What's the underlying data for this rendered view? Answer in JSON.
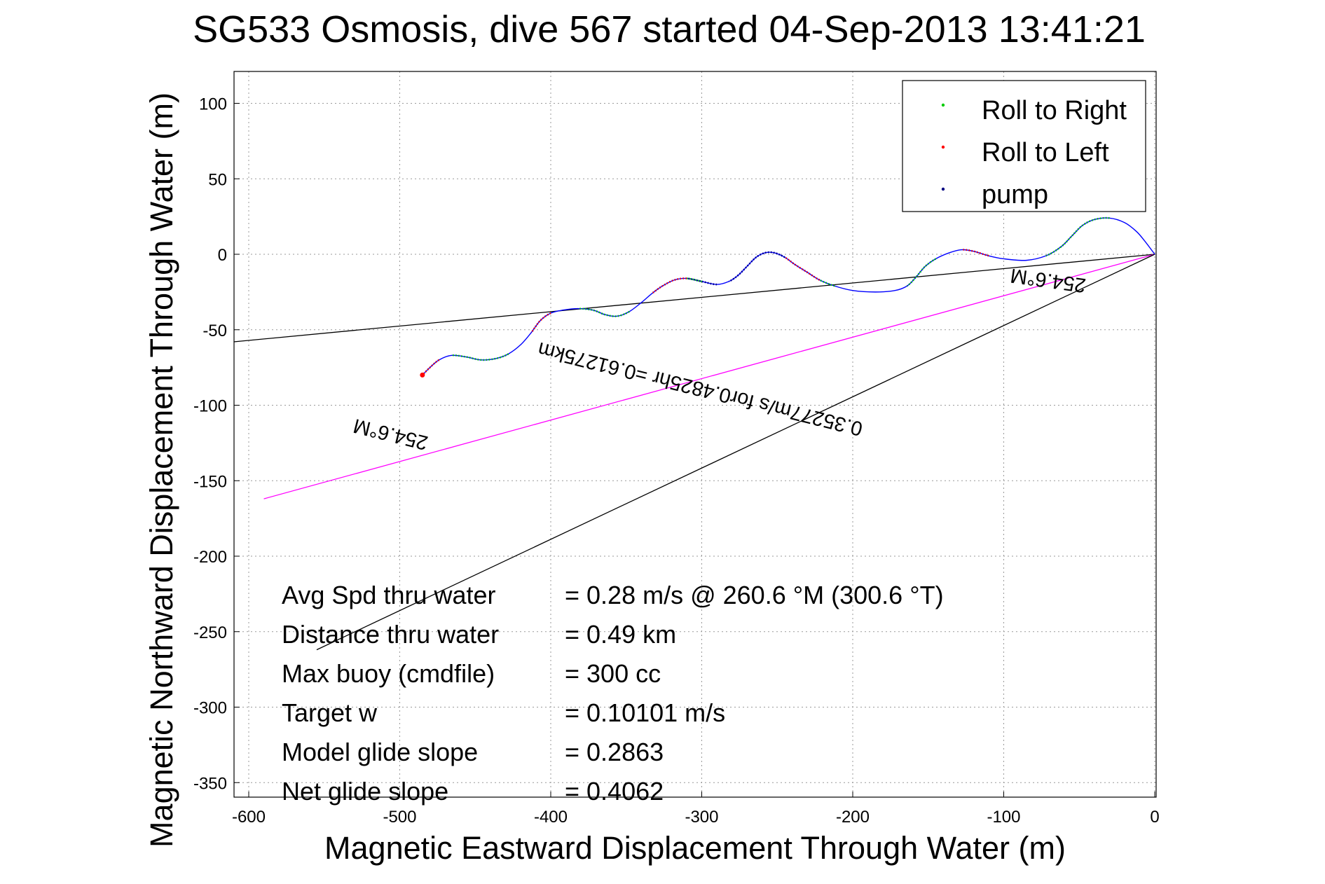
{
  "chart_data": {
    "type": "line",
    "title": "SG533 Osmosis, dive 567 started 04-Sep-2013 13:41:21",
    "xlabel": "Magnetic Eastward Displacement Through Water (m)",
    "ylabel": "Magnetic Northward Displacement Through Water (m)",
    "xlim": [
      -610,
      0
    ],
    "ylim": [
      -360,
      120
    ],
    "xticks": [
      -600,
      -500,
      -400,
      -300,
      -200,
      -100,
      0
    ],
    "yticks": [
      100,
      50,
      0,
      -50,
      -100,
      -150,
      -200,
      -250,
      -300,
      -350
    ],
    "grid": true,
    "legend": {
      "placement": "top-right",
      "entries": [
        {
          "label": "Roll to Right",
          "color": "#00cc00"
        },
        {
          "label": "Roll to Left",
          "color": "#ff0000"
        },
        {
          "label": "pump",
          "color": "#000080"
        }
      ]
    },
    "track": {
      "color": "#0000ff",
      "points": [
        [
          0,
          0
        ],
        [
          -6,
          8
        ],
        [
          -12,
          15
        ],
        [
          -20,
          21
        ],
        [
          -30,
          24
        ],
        [
          -40,
          23
        ],
        [
          -48,
          19
        ],
        [
          -55,
          12
        ],
        [
          -62,
          5
        ],
        [
          -72,
          -1
        ],
        [
          -85,
          -4
        ],
        [
          -100,
          -3
        ],
        [
          -110,
          -1
        ],
        [
          -120,
          2
        ],
        [
          -128,
          3
        ],
        [
          -136,
          1
        ],
        [
          -145,
          -3
        ],
        [
          -152,
          -8
        ],
        [
          -158,
          -15
        ],
        [
          -164,
          -21
        ],
        [
          -172,
          -24
        ],
        [
          -185,
          -25
        ],
        [
          -200,
          -24
        ],
        [
          -212,
          -21
        ],
        [
          -222,
          -17
        ],
        [
          -230,
          -12
        ],
        [
          -238,
          -7
        ],
        [
          -245,
          -2
        ],
        [
          -252,
          1
        ],
        [
          -258,
          1
        ],
        [
          -264,
          -2
        ],
        [
          -270,
          -8
        ],
        [
          -276,
          -14
        ],
        [
          -282,
          -18
        ],
        [
          -290,
          -20
        ],
        [
          -300,
          -18
        ],
        [
          -310,
          -16
        ],
        [
          -318,
          -17
        ],
        [
          -326,
          -21
        ],
        [
          -333,
          -26
        ],
        [
          -340,
          -32
        ],
        [
          -348,
          -38
        ],
        [
          -356,
          -41
        ],
        [
          -364,
          -40
        ],
        [
          -372,
          -37
        ],
        [
          -382,
          -36
        ],
        [
          -392,
          -37
        ],
        [
          -400,
          -39
        ],
        [
          -407,
          -44
        ],
        [
          -413,
          -52
        ],
        [
          -420,
          -60
        ],
        [
          -428,
          -66
        ],
        [
          -436,
          -69
        ],
        [
          -446,
          -70
        ],
        [
          -456,
          -68
        ],
        [
          -466,
          -67
        ],
        [
          -474,
          -70
        ],
        [
          -480,
          -75
        ],
        [
          -485,
          -80
        ]
      ],
      "roll_right_ranges": [
        [
          4,
          9
        ],
        [
          16,
          19
        ],
        [
          23,
          24
        ],
        [
          35,
          36
        ],
        [
          41,
          45
        ],
        [
          51,
          55
        ]
      ],
      "roll_left_ranges": [
        [
          12,
          14
        ],
        [
          24,
          27
        ],
        [
          36,
          39
        ],
        [
          47,
          49
        ],
        [
          56,
          60
        ]
      ],
      "pump_ranges": [
        [
          27,
          33
        ],
        [
          34,
          36
        ],
        [
          58,
          61
        ]
      ]
    },
    "lines": [
      {
        "name": "",
        "color": "#000000",
        "x": [
          0,
          -610
        ],
        "y": [
          0,
          -58
        ]
      },
      {
        "name": "",
        "color": "#ff00ff",
        "x": [
          0,
          -590
        ],
        "y": [
          0,
          -162
        ]
      },
      {
        "name": "",
        "color": "#000000",
        "x": [
          0,
          -555
        ],
        "y": [
          0,
          -262
        ]
      }
    ],
    "annotations": [
      {
        "text": "254.6°M",
        "x": -70,
        "y": -13,
        "rotation": 188,
        "size": 29
      },
      {
        "text": "0.35277m/s for0.4825hr =0.61275km",
        "x": -300,
        "y": -85,
        "rotation": 194,
        "size": 29
      },
      {
        "text": "254.6°M",
        "x": -505,
        "y": -115,
        "rotation": 194,
        "size": 29
      }
    ],
    "stats": [
      {
        "label": "Avg Spd thru water",
        "value": "=  0.28 m/s @ 260.6 °M (300.6 °T)"
      },
      {
        "label": "Distance thru water",
        "value": "=  0.49 km"
      },
      {
        "label": "Max buoy (cmdfile)",
        "value": "= 300 cc"
      },
      {
        "label": "Target w",
        "value": "= 0.10101 m/s"
      },
      {
        "label": "Model glide slope",
        "value": "= 0.2863"
      },
      {
        "label": "Net glide slope",
        "value": "= 0.4062"
      }
    ]
  }
}
